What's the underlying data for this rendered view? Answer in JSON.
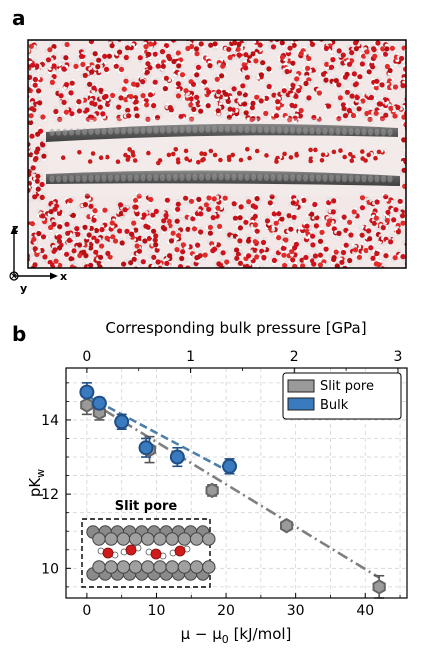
{
  "panel_a": {
    "letter": "a",
    "axes": {
      "z": "z",
      "y": "y",
      "x": "x"
    }
  },
  "panel_b": {
    "letter": "b",
    "top_axis_label": "Corresponding bulk pressure [GPa]",
    "top_ticks": [
      "0",
      "1",
      "2",
      "3"
    ],
    "inset_label": "Slit pore"
  },
  "colors": {
    "slit": "#9a9a9a",
    "slit_edge": "#666666",
    "bulk": "#3a7bc0",
    "bulk_edge": "#1f4f86",
    "slit_fit": "#7f7f7f",
    "bulk_fit": "#4f7fa7"
  },
  "chart_data": {
    "type": "scatter",
    "xlabel": "μ − μ₀ [kJ/mol]",
    "ylabel": "pK_w",
    "xlim": [
      -3,
      46
    ],
    "ylim": [
      9.2,
      15.4
    ],
    "xticks": [
      0,
      10,
      20,
      30,
      40
    ],
    "yticks": [
      10,
      12,
      14
    ],
    "grid": true,
    "legend_position": "top-right",
    "series": [
      {
        "name": "Slit pore",
        "marker": "hexagon",
        "points": [
          {
            "x": 0.0,
            "y": 14.4,
            "err": 0.25
          },
          {
            "x": 1.8,
            "y": 14.2,
            "err": 0.2
          },
          {
            "x": 9.0,
            "y": 13.2,
            "err": 0.35
          },
          {
            "x": 18.0,
            "y": 12.1,
            "err": 0.15
          },
          {
            "x": 28.7,
            "y": 11.15,
            "err": 0.1
          },
          {
            "x": 42.0,
            "y": 9.5,
            "err": 0.3
          }
        ],
        "fit": {
          "x": [
            0,
            42
          ],
          "y": [
            14.55,
            9.75
          ],
          "style": "dashdot"
        }
      },
      {
        "name": "Bulk",
        "marker": "circle",
        "points": [
          {
            "x": 0.0,
            "y": 14.75,
            "err": 0.25
          },
          {
            "x": 1.8,
            "y": 14.45,
            "err": 0.15
          },
          {
            "x": 5.0,
            "y": 13.95,
            "err": 0.2
          },
          {
            "x": 8.5,
            "y": 13.25,
            "err": 0.25
          },
          {
            "x": 13.0,
            "y": 13.0,
            "err": 0.25
          },
          {
            "x": 20.5,
            "y": 12.75,
            "err": 0.2
          }
        ],
        "fit": {
          "x": [
            0,
            20.5
          ],
          "y": [
            14.65,
            12.6
          ],
          "style": "dashed"
        }
      }
    ]
  }
}
